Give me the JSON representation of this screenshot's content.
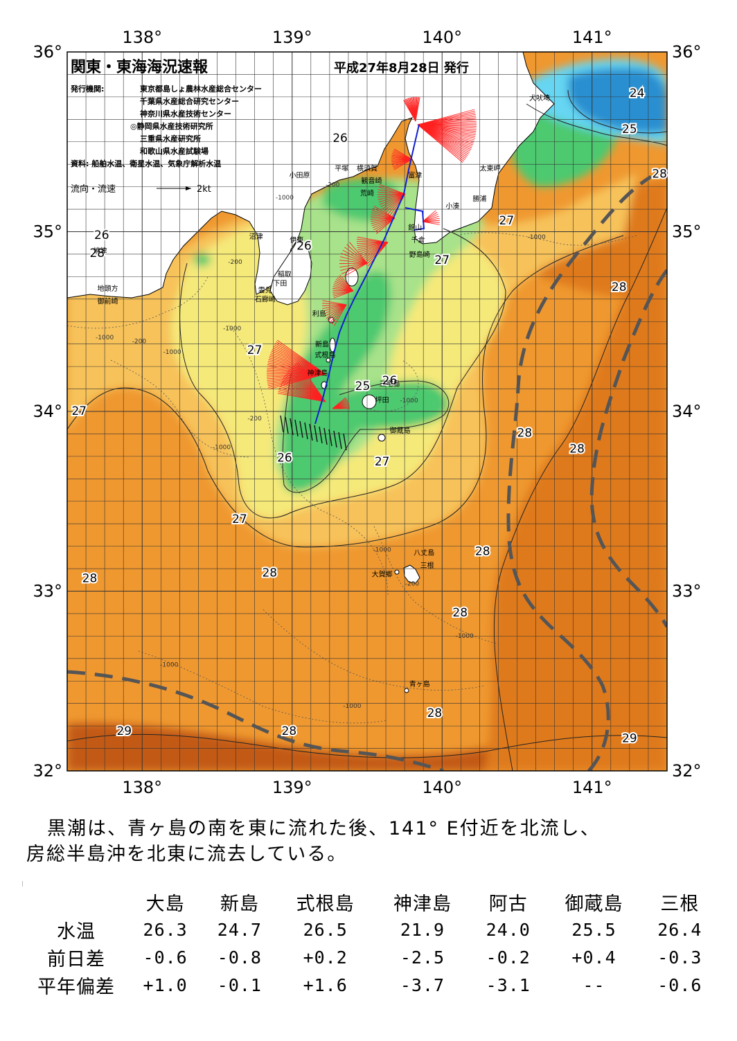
{
  "header": {
    "title": "関東・東海海況速報",
    "issue_date": "平成27年8月28日 発行",
    "issuer_label": "発行機関:",
    "issuers": [
      "東京都島しょ農林水産総合センター",
      "千葉県水産総合研究センター",
      "神奈川県水産技術センター",
      "◎静岡県水産技術研究所",
      "三重県水産研究所",
      "和歌山県水産試験場"
    ],
    "sources": "資料: 船舶水温、衛星水温、気象庁解析水温",
    "legend_label": "流向・流速",
    "legend_scale": "2kt"
  },
  "axes": {
    "lon_labels": [
      "138°",
      "139°",
      "140°",
      "141°"
    ],
    "lat_labels": [
      "36°",
      "35°",
      "34°",
      "33°",
      "32°"
    ],
    "lon_range": [
      137.5,
      141.5
    ],
    "lat_range": [
      32,
      36
    ]
  },
  "isotherm_labels": [
    {
      "text": "24",
      "lon": 141.3,
      "lat": 35.75
    },
    {
      "text": "25",
      "lon": 141.25,
      "lat": 35.55
    },
    {
      "text": "26",
      "lon": 139.32,
      "lat": 35.5
    },
    {
      "text": "28",
      "lon": 141.45,
      "lat": 35.3
    },
    {
      "text": "27",
      "lon": 140.43,
      "lat": 35.04
    },
    {
      "text": "26",
      "lon": 137.73,
      "lat": 34.96
    },
    {
      "text": "28",
      "lon": 137.7,
      "lat": 34.86
    },
    {
      "text": "26",
      "lon": 139.08,
      "lat": 34.9
    },
    {
      "text": "27",
      "lon": 140.0,
      "lat": 34.82
    },
    {
      "text": "28",
      "lon": 141.18,
      "lat": 34.67
    },
    {
      "text": "27",
      "lon": 138.75,
      "lat": 34.32
    },
    {
      "text": "27",
      "lon": 137.58,
      "lat": 33.98
    },
    {
      "text": "28",
      "lon": 140.55,
      "lat": 33.86
    },
    {
      "text": "28",
      "lon": 140.9,
      "lat": 33.77
    },
    {
      "text": "26",
      "lon": 138.95,
      "lat": 33.72
    },
    {
      "text": "27",
      "lon": 139.6,
      "lat": 33.7
    },
    {
      "text": "27",
      "lon": 138.65,
      "lat": 33.38
    },
    {
      "text": "28",
      "lon": 140.27,
      "lat": 33.2
    },
    {
      "text": "28",
      "lon": 138.85,
      "lat": 33.08
    },
    {
      "text": "28",
      "lon": 137.65,
      "lat": 33.05
    },
    {
      "text": "28",
      "lon": 140.12,
      "lat": 32.86
    },
    {
      "text": "28",
      "lon": 139.95,
      "lat": 32.3
    },
    {
      "text": "28",
      "lon": 138.98,
      "lat": 32.2
    },
    {
      "text": "29",
      "lon": 137.88,
      "lat": 32.2
    },
    {
      "text": "29",
      "lon": 141.25,
      "lat": 32.16
    },
    {
      "text": "25",
      "lon": 139.47,
      "lat": 34.12
    },
    {
      "text": "26",
      "lon": 139.65,
      "lat": 34.15
    }
  ],
  "places": [
    {
      "name": "犬吠埼",
      "lon": 140.65,
      "lat": 35.73
    },
    {
      "name": "太東岬",
      "lon": 140.32,
      "lat": 35.34
    },
    {
      "name": "勝浦",
      "lon": 140.25,
      "lat": 35.17
    },
    {
      "name": "小湊",
      "lon": 140.07,
      "lat": 35.13
    },
    {
      "name": "富津",
      "lon": 139.82,
      "lat": 35.3
    },
    {
      "name": "横須賀",
      "lon": 139.5,
      "lat": 35.34
    },
    {
      "name": "観音崎",
      "lon": 139.53,
      "lat": 35.27
    },
    {
      "name": "荒崎",
      "lon": 139.5,
      "lat": 35.2
    },
    {
      "name": "平塚",
      "lon": 139.33,
      "lat": 35.34
    },
    {
      "name": "小田原",
      "lon": 139.05,
      "lat": 35.3
    },
    {
      "name": "館山",
      "lon": 139.82,
      "lat": 35.01
    },
    {
      "name": "千倉",
      "lon": 139.84,
      "lat": 34.94
    },
    {
      "name": "野島崎",
      "lon": 139.85,
      "lat": 34.86
    },
    {
      "name": "沼津",
      "lon": 138.76,
      "lat": 34.96
    },
    {
      "name": "伊東",
      "lon": 139.03,
      "lat": 34.94
    },
    {
      "name": "焼津",
      "lon": 137.72,
      "lat": 34.88
    },
    {
      "name": "稲取",
      "lon": 138.95,
      "lat": 34.75
    },
    {
      "name": "下田",
      "lon": 138.92,
      "lat": 34.7
    },
    {
      "name": "雲見",
      "lon": 138.82,
      "lat": 34.66
    },
    {
      "name": "石廊崎",
      "lon": 138.82,
      "lat": 34.61
    },
    {
      "name": "地頭方",
      "lon": 137.77,
      "lat": 34.67
    },
    {
      "name": "御前崎",
      "lon": 137.77,
      "lat": 34.6
    },
    {
      "name": "利島",
      "lon": 139.18,
      "lat": 34.53
    },
    {
      "name": "新島",
      "lon": 139.2,
      "lat": 34.36
    },
    {
      "name": "式根島",
      "lon": 139.22,
      "lat": 34.3
    },
    {
      "name": "神津島",
      "lon": 139.17,
      "lat": 34.2
    },
    {
      "name": "三宅島",
      "lon": 139.65,
      "lat": 34.14
    },
    {
      "name": "坪田",
      "lon": 139.6,
      "lat": 34.05
    },
    {
      "name": "御蔵島",
      "lon": 139.72,
      "lat": 33.88
    },
    {
      "name": "八丈島",
      "lon": 139.88,
      "lat": 33.2
    },
    {
      "name": "三根",
      "lon": 139.9,
      "lat": 33.13
    },
    {
      "name": "大賀郷",
      "lon": 139.6,
      "lat": 33.08
    },
    {
      "name": "青ヶ島",
      "lon": 139.85,
      "lat": 32.47
    }
  ],
  "depth_labels": [
    {
      "text": "-200",
      "lon": 139.27,
      "lat": 35.25
    },
    {
      "text": "-1000",
      "lon": 138.95,
      "lat": 35.18
    },
    {
      "text": "-200",
      "lon": 138.62,
      "lat": 34.82
    },
    {
      "text": "-1000",
      "lon": 138.6,
      "lat": 34.45
    },
    {
      "text": "-200",
      "lon": 137.98,
      "lat": 34.38
    },
    {
      "text": "-1000",
      "lon": 137.75,
      "lat": 34.4
    },
    {
      "text": "-1000",
      "lon": 138.2,
      "lat": 34.32
    },
    {
      "text": "-200",
      "lon": 138.75,
      "lat": 33.95
    },
    {
      "text": "-1000",
      "lon": 138.53,
      "lat": 33.79
    },
    {
      "text": "-1000",
      "lon": 139.78,
      "lat": 34.05
    },
    {
      "text": "-1000",
      "lon": 140.63,
      "lat": 34.96
    },
    {
      "text": "-1000",
      "lon": 139.6,
      "lat": 33.22
    },
    {
      "text": "-200",
      "lon": 139.8,
      "lat": 33.03
    },
    {
      "text": "-1000",
      "lon": 140.15,
      "lat": 32.74
    },
    {
      "text": "-1000",
      "lon": 138.18,
      "lat": 32.58
    },
    {
      "text": "-1000",
      "lon": 139.4,
      "lat": 32.35
    }
  ],
  "colors": {
    "t24": "#2a8fd0",
    "t25": "#66d6f2",
    "t26": "#4ec96f",
    "t26_5": "#a8e28a",
    "t27": "#f5e97a",
    "t27_5": "#f7c25a",
    "t28": "#ef9830",
    "t28_5": "#df7a1e",
    "t29": "#c25a12",
    "land": "#ffffff",
    "kuroshio": "#555555",
    "current": "#ff2020",
    "track": "#1020d0"
  },
  "summary": {
    "line1": "黒潮は、青ヶ島の南を東に流れた後、141° E付近を北流し、",
    "line2": "房総半島沖を北東に流去している。"
  },
  "stats": {
    "columns": [
      "大島",
      "新島",
      "式根島",
      "神津島",
      "阿古",
      "御蔵島",
      "三根"
    ],
    "rows": [
      {
        "label": "水温",
        "values": [
          "26.3",
          "24.7",
          "26.5",
          "21.9",
          "24.0",
          "25.5",
          "26.4"
        ]
      },
      {
        "label": "前日差",
        "values": [
          "-0.6",
          "-0.8",
          "+0.2",
          "-2.5",
          "-0.2",
          "+0.4",
          "-0.3"
        ]
      },
      {
        "label": "平年偏差",
        "values": [
          "+1.0",
          "-0.1",
          "+1.6",
          "-3.7",
          "-3.1",
          "--",
          "-0.6"
        ]
      }
    ]
  }
}
